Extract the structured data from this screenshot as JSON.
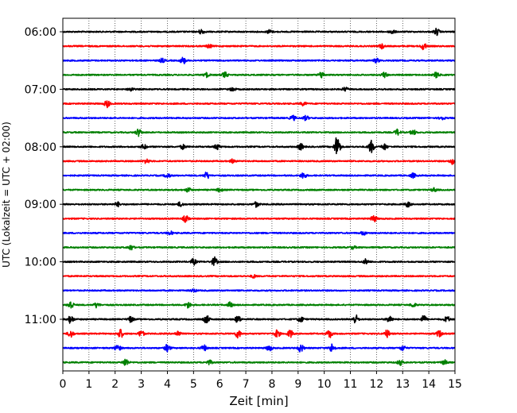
{
  "chart_data": {
    "type": "line",
    "title": "",
    "xlabel": "Zeit  [min]",
    "ylabel": "UTC (Lokalzeit = UTC + 02:00)",
    "xlim": [
      0,
      15
    ],
    "x_ticks": [
      0,
      1,
      2,
      3,
      4,
      5,
      6,
      7,
      8,
      9,
      10,
      11,
      12,
      13,
      14,
      15
    ],
    "x_tick_labels": [
      "0",
      "1",
      "2",
      "3",
      "4",
      "5",
      "6",
      "7",
      "8",
      "9",
      "10",
      "11",
      "12",
      "13",
      "14",
      "15"
    ],
    "y_tick_labels": [
      "06:00",
      "07:00",
      "08:00",
      "09:00",
      "10:00",
      "11:00"
    ],
    "grid": "vertical dotted lines at each minute",
    "legend": "none",
    "row_colors": [
      "#000000",
      "#ff0000",
      "#0000ff",
      "#008000"
    ],
    "row_interval_minutes": 15,
    "series": [
      {
        "start": "06:00",
        "color": "#000000",
        "bursts": [
          {
            "t": 5.3,
            "amp": 0.35
          },
          {
            "t": 7.9,
            "amp": 0.25
          },
          {
            "t": 12.6,
            "amp": 0.3
          },
          {
            "t": 14.3,
            "amp": 0.45
          }
        ]
      },
      {
        "start": "06:15",
        "color": "#ff0000",
        "bursts": [
          {
            "t": 5.6,
            "amp": 0.25
          },
          {
            "t": 12.2,
            "amp": 0.3
          },
          {
            "t": 13.8,
            "amp": 0.45
          }
        ]
      },
      {
        "start": "06:30",
        "color": "#0000ff",
        "bursts": [
          {
            "t": 3.8,
            "amp": 0.25
          },
          {
            "t": 4.6,
            "amp": 0.45
          },
          {
            "t": 12.0,
            "amp": 0.3
          }
        ]
      },
      {
        "start": "06:45",
        "color": "#008000",
        "bursts": [
          {
            "t": 5.5,
            "amp": 0.3
          },
          {
            "t": 6.2,
            "amp": 0.35
          },
          {
            "t": 9.9,
            "amp": 0.45
          },
          {
            "t": 12.3,
            "amp": 0.35
          },
          {
            "t": 14.3,
            "amp": 0.4
          }
        ]
      },
      {
        "start": "07:00",
        "color": "#000000",
        "bursts": [
          {
            "t": 2.6,
            "amp": 0.25
          },
          {
            "t": 6.5,
            "amp": 0.25
          },
          {
            "t": 10.8,
            "amp": 0.25
          }
        ]
      },
      {
        "start": "07:15",
        "color": "#ff0000",
        "bursts": [
          {
            "t": 1.7,
            "amp": 0.5
          },
          {
            "t": 9.2,
            "amp": 0.25
          }
        ]
      },
      {
        "start": "07:30",
        "color": "#0000ff",
        "bursts": [
          {
            "t": 8.8,
            "amp": 0.35
          },
          {
            "t": 9.3,
            "amp": 0.3
          },
          {
            "t": 14.5,
            "amp": 0.25
          }
        ]
      },
      {
        "start": "07:45",
        "color": "#008000",
        "bursts": [
          {
            "t": 2.9,
            "amp": 0.5
          },
          {
            "t": 12.8,
            "amp": 0.4
          },
          {
            "t": 13.4,
            "amp": 0.35
          }
        ]
      },
      {
        "start": "08:00",
        "color": "#000000",
        "bursts": [
          {
            "t": 3.1,
            "amp": 0.3
          },
          {
            "t": 4.6,
            "amp": 0.3
          },
          {
            "t": 5.9,
            "amp": 0.35
          },
          {
            "t": 9.1,
            "amp": 0.4
          },
          {
            "t": 10.5,
            "amp": 1.6
          },
          {
            "t": 11.8,
            "amp": 0.85
          },
          {
            "t": 12.3,
            "amp": 0.4
          }
        ]
      },
      {
        "start": "08:15",
        "color": "#ff0000",
        "bursts": [
          {
            "t": 3.2,
            "amp": 0.3
          },
          {
            "t": 6.5,
            "amp": 0.25
          },
          {
            "t": 14.9,
            "amp": 0.4
          }
        ]
      },
      {
        "start": "08:30",
        "color": "#0000ff",
        "bursts": [
          {
            "t": 4.0,
            "amp": 0.3
          },
          {
            "t": 5.5,
            "amp": 0.45
          },
          {
            "t": 9.2,
            "amp": 0.45
          },
          {
            "t": 13.4,
            "amp": 0.3
          }
        ]
      },
      {
        "start": "08:45",
        "color": "#008000",
        "bursts": [
          {
            "t": 4.8,
            "amp": 0.3
          },
          {
            "t": 6.0,
            "amp": 0.25
          },
          {
            "t": 14.2,
            "amp": 0.25
          }
        ]
      },
      {
        "start": "09:00",
        "color": "#000000",
        "bursts": [
          {
            "t": 2.1,
            "amp": 0.3
          },
          {
            "t": 4.5,
            "amp": 0.3
          },
          {
            "t": 7.4,
            "amp": 0.35
          },
          {
            "t": 13.2,
            "amp": 0.35
          }
        ]
      },
      {
        "start": "09:15",
        "color": "#ff0000",
        "bursts": [
          {
            "t": 4.7,
            "amp": 0.45
          },
          {
            "t": 11.9,
            "amp": 0.45
          }
        ]
      },
      {
        "start": "09:30",
        "color": "#0000ff",
        "bursts": [
          {
            "t": 4.1,
            "amp": 0.25
          },
          {
            "t": 11.5,
            "amp": 0.25
          }
        ]
      },
      {
        "start": "09:45",
        "color": "#008000",
        "bursts": [
          {
            "t": 2.6,
            "amp": 0.35
          },
          {
            "t": 11.1,
            "amp": 0.2
          }
        ]
      },
      {
        "start": "10:00",
        "color": "#000000",
        "bursts": [
          {
            "t": 5.0,
            "amp": 0.4
          },
          {
            "t": 5.8,
            "amp": 0.6
          },
          {
            "t": 11.6,
            "amp": 0.35
          }
        ]
      },
      {
        "start": "10:15",
        "color": "#ff0000",
        "bursts": [
          {
            "t": 7.3,
            "amp": 0.2
          }
        ]
      },
      {
        "start": "10:30",
        "color": "#0000ff",
        "bursts": [
          {
            "t": 5.0,
            "amp": 0.2
          }
        ]
      },
      {
        "start": "10:45",
        "color": "#008000",
        "bursts": [
          {
            "t": 0.3,
            "amp": 0.6
          },
          {
            "t": 1.3,
            "amp": 0.35
          },
          {
            "t": 4.8,
            "amp": 0.4
          },
          {
            "t": 6.4,
            "amp": 0.35
          },
          {
            "t": 13.4,
            "amp": 0.3
          }
        ]
      },
      {
        "start": "11:00",
        "color": "#000000",
        "bursts": [
          {
            "t": 0.3,
            "amp": 0.55
          },
          {
            "t": 2.6,
            "amp": 0.4
          },
          {
            "t": 5.5,
            "amp": 0.55
          },
          {
            "t": 6.7,
            "amp": 0.5
          },
          {
            "t": 9.1,
            "amp": 0.4
          },
          {
            "t": 11.2,
            "amp": 0.6
          },
          {
            "t": 12.5,
            "amp": 0.5
          },
          {
            "t": 13.8,
            "amp": 0.5
          },
          {
            "t": 14.7,
            "amp": 0.4
          }
        ]
      },
      {
        "start": "11:15",
        "color": "#ff0000",
        "bursts": [
          {
            "t": 0.3,
            "amp": 0.5
          },
          {
            "t": 2.2,
            "amp": 0.6
          },
          {
            "t": 3.0,
            "amp": 0.45
          },
          {
            "t": 4.4,
            "amp": 0.35
          },
          {
            "t": 6.7,
            "amp": 0.55
          },
          {
            "t": 8.2,
            "amp": 0.5
          },
          {
            "t": 8.7,
            "amp": 0.5
          },
          {
            "t": 10.2,
            "amp": 0.55
          },
          {
            "t": 12.4,
            "amp": 0.5
          },
          {
            "t": 14.4,
            "amp": 0.45
          }
        ]
      },
      {
        "start": "11:30",
        "color": "#0000ff",
        "bursts": [
          {
            "t": 2.1,
            "amp": 0.5
          },
          {
            "t": 4.0,
            "amp": 0.5
          },
          {
            "t": 5.4,
            "amp": 0.4
          },
          {
            "t": 7.9,
            "amp": 0.4
          },
          {
            "t": 9.1,
            "amp": 0.55
          },
          {
            "t": 10.3,
            "amp": 0.6
          },
          {
            "t": 13.0,
            "amp": 0.35
          }
        ]
      },
      {
        "start": "11:45",
        "color": "#008000",
        "bursts": [
          {
            "t": 2.4,
            "amp": 0.55
          },
          {
            "t": 5.6,
            "amp": 0.3
          },
          {
            "t": 12.9,
            "amp": 0.35
          },
          {
            "t": 14.6,
            "amp": 0.3
          }
        ]
      }
    ]
  }
}
